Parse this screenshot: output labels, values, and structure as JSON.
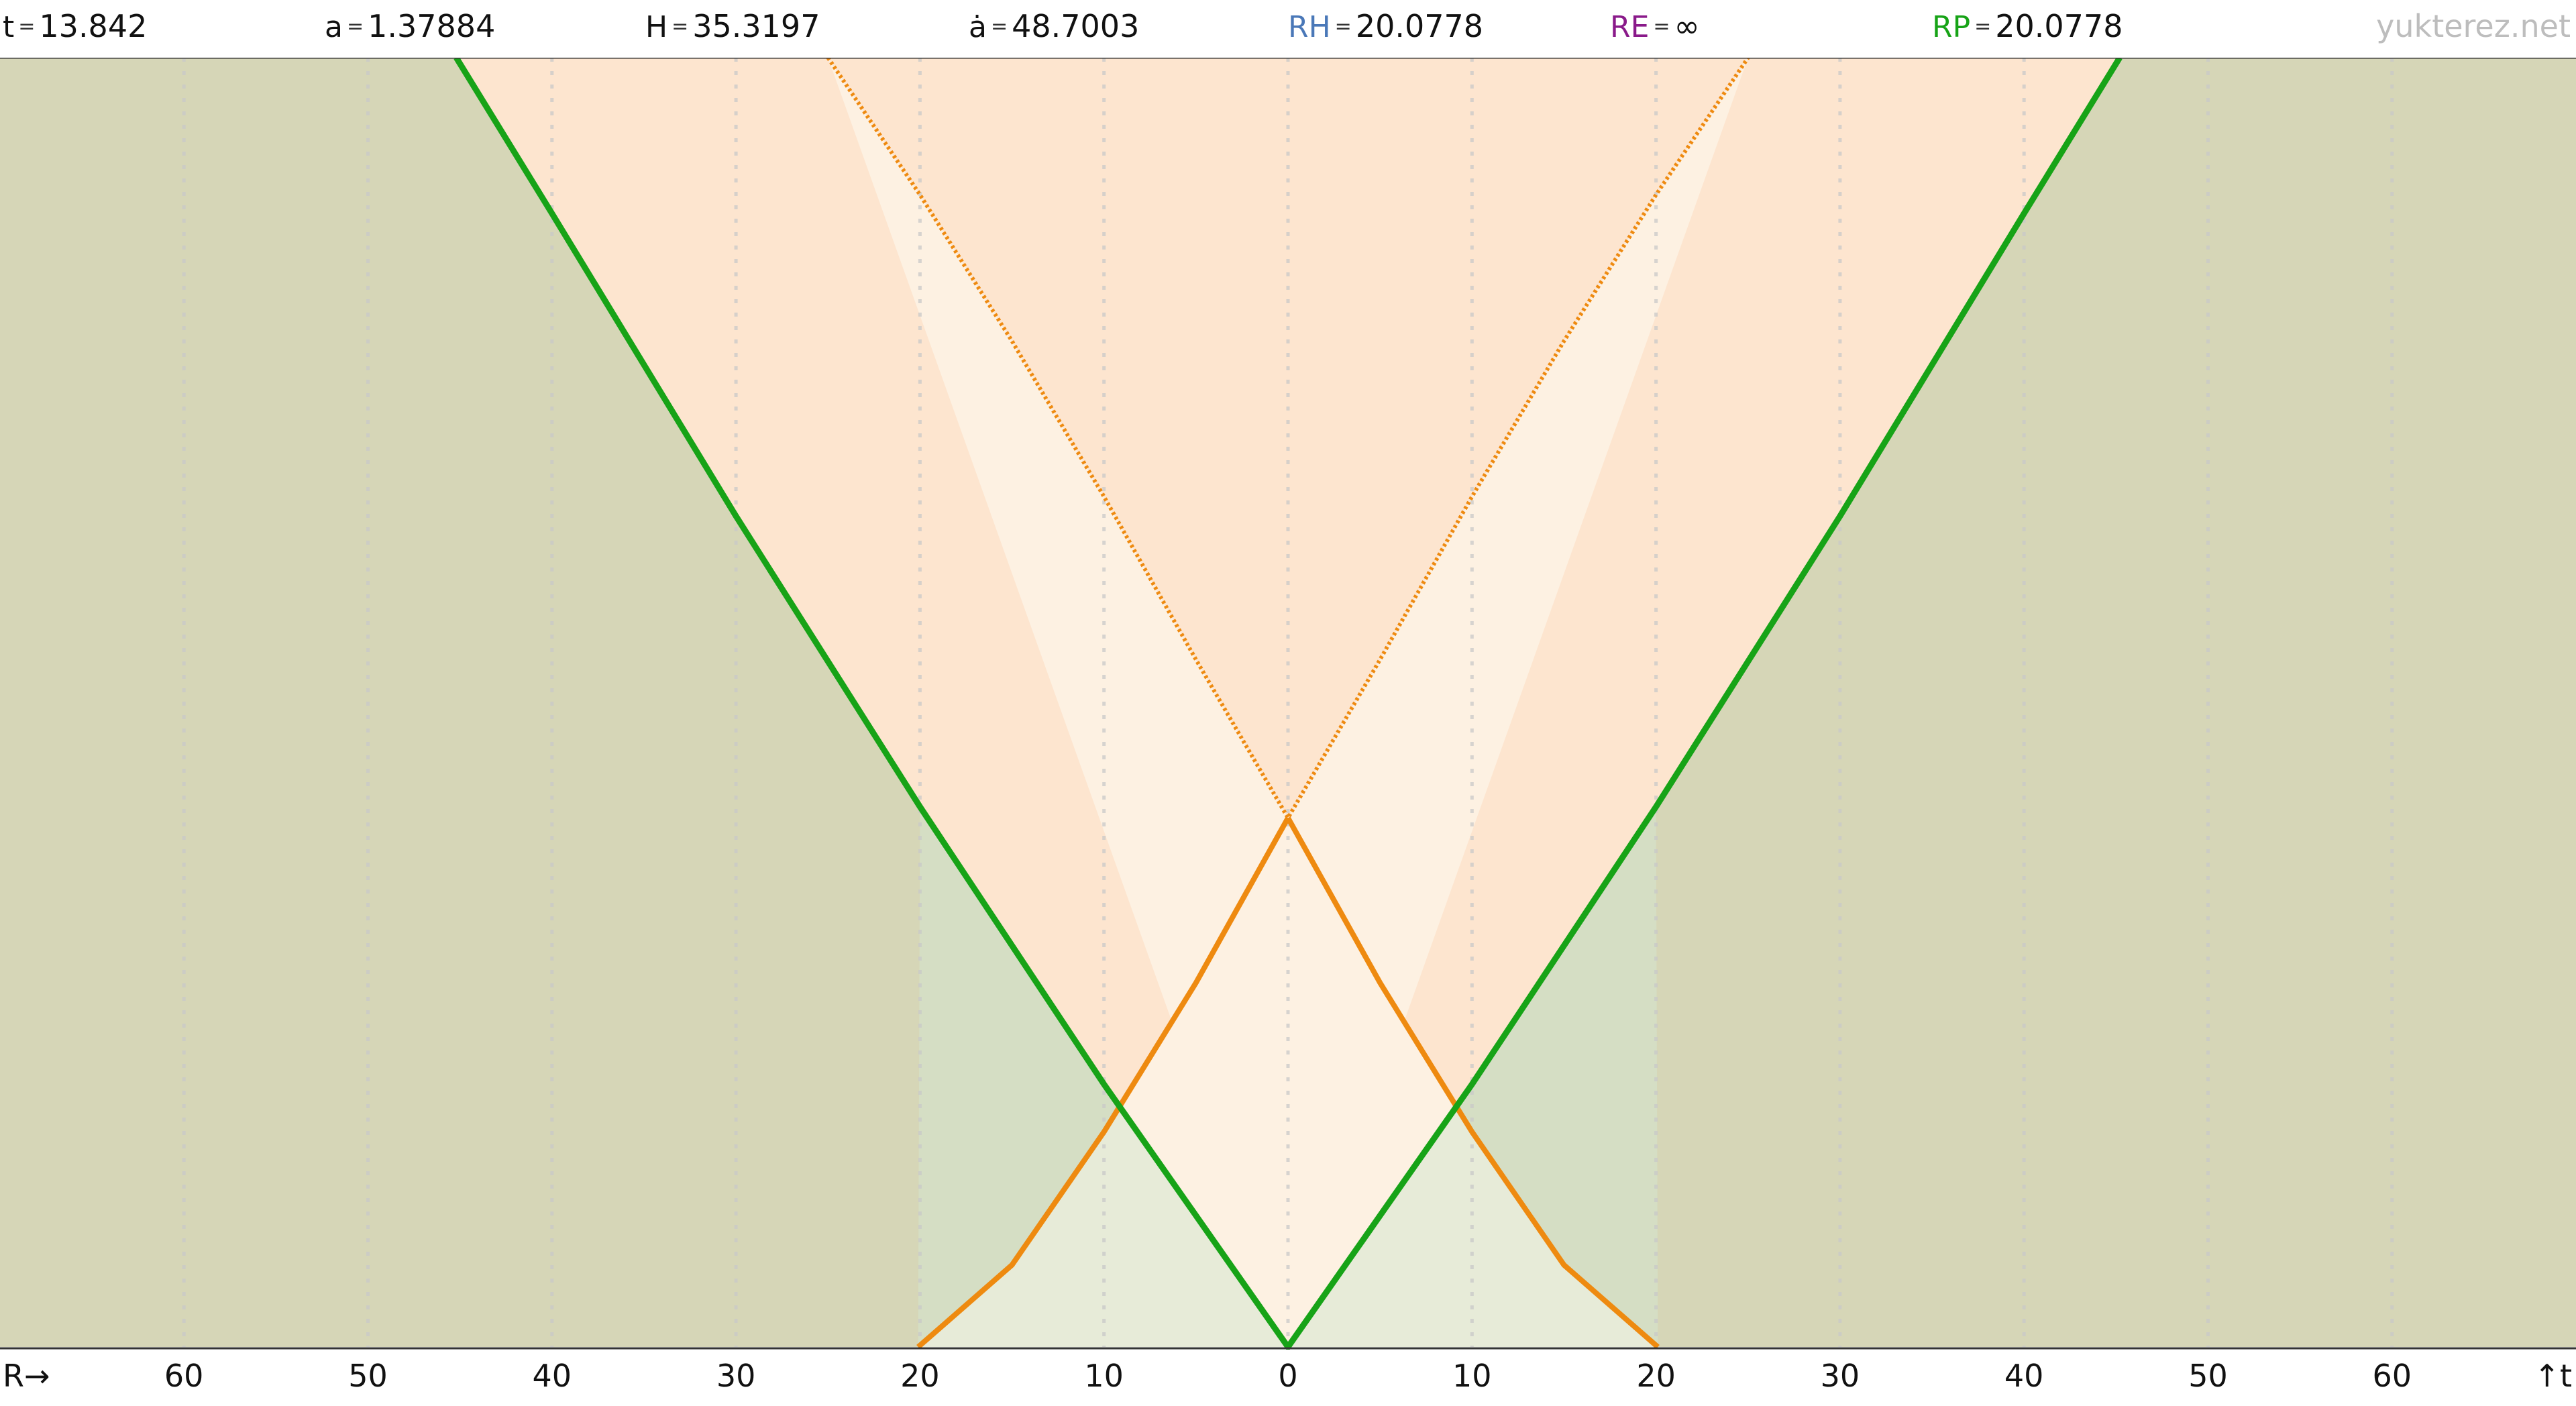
{
  "stats": [
    {
      "label": "t",
      "value": "13.842",
      "color": "#111111"
    },
    {
      "label": "a",
      "value": "1.37884",
      "color": "#111111"
    },
    {
      "label": "H",
      "value": "35.3197",
      "color": "#111111"
    },
    {
      "label": "ȧ",
      "value": "48.7003",
      "color": "#111111"
    },
    {
      "label": "RH",
      "value": "20.0778",
      "color": "#4a78b8"
    },
    {
      "label": "RE",
      "value": "∞",
      "color": "#8a1a8a"
    },
    {
      "label": "RP",
      "value": "20.0778",
      "color": "#17a317"
    }
  ],
  "equals_sign": "=",
  "watermark": "yukterez.net",
  "axis": {
    "x_label": "R→",
    "y_label": "↑t",
    "ticks": [
      60,
      50,
      40,
      30,
      20,
      10,
      0,
      10,
      20,
      30,
      40,
      50,
      60
    ],
    "tick_values": [
      -60,
      -50,
      -40,
      -30,
      -20,
      -10,
      0,
      10,
      20,
      30,
      40,
      50,
      60
    ]
  },
  "colors": {
    "outside_region": "#d6d6b7",
    "light_region": "#fdf1e2",
    "mid_region": "#fde5cf",
    "green_curve": "#17a317",
    "orange_curve": "#ee8a10",
    "grid": "#c9c9c9",
    "bottom_overlap": "#d5e5cf"
  },
  "chart_data": {
    "type": "line",
    "x_range": [
      -70,
      70
    ],
    "t_range": [
      0,
      13.842
    ],
    "series": [
      {
        "name": "RP",
        "style": "solid-green",
        "x": [
          -45.2,
          -40,
          -30,
          -20,
          -10,
          0,
          10,
          20,
          30,
          40,
          45.2
        ],
        "t": [
          13.842,
          12.17,
          8.92,
          5.8,
          2.82,
          0,
          2.82,
          5.8,
          8.92,
          12.17,
          13.842
        ]
      },
      {
        "name": "RH",
        "style": "dotted-orange",
        "x": [
          -25.0,
          -20,
          -15,
          -10,
          -5,
          0,
          5,
          10,
          15,
          20,
          25.0
        ],
        "t": [
          13.842,
          12.37,
          10.8,
          9.13,
          7.38,
          5.68,
          7.38,
          9.13,
          10.8,
          12.37,
          13.842
        ]
      },
      {
        "name": "RH left",
        "style": "solid-orange",
        "x": [
          -20.1,
          -15,
          -10,
          -5,
          0
        ],
        "t": [
          0,
          0.88,
          2.31,
          3.91,
          5.68
        ]
      },
      {
        "name": "RH right",
        "style": "solid-orange",
        "x": [
          0,
          5,
          10,
          15,
          20.1
        ],
        "t": [
          5.68,
          3.91,
          2.31,
          0.88,
          0
        ]
      }
    ]
  }
}
